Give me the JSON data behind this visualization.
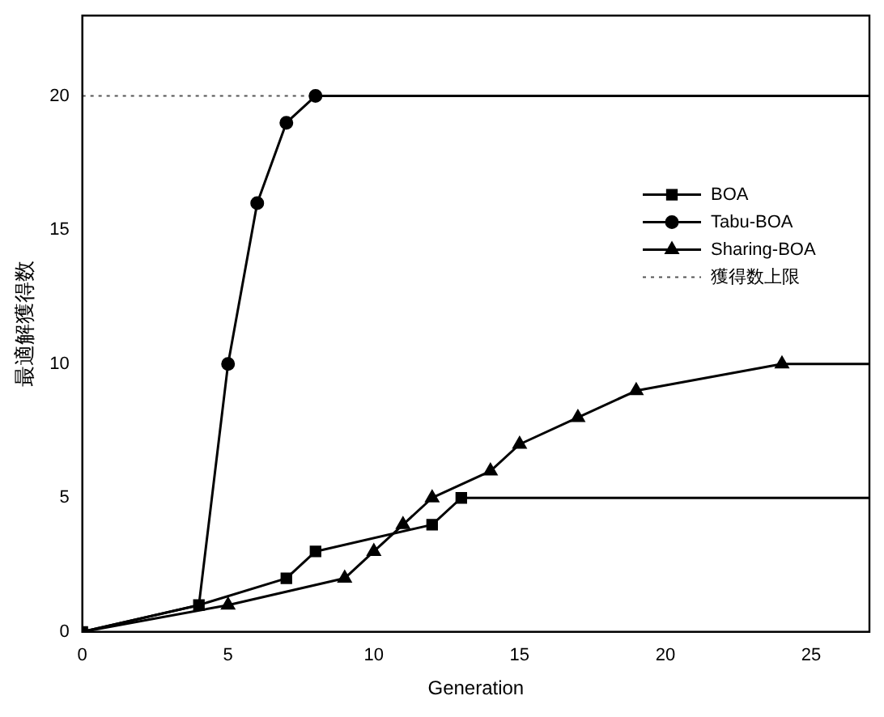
{
  "chart_data": {
    "type": "line",
    "xlabel": "Generation",
    "ylabel": "最適解獲得数",
    "xlim": [
      0,
      27
    ],
    "xticks": [
      0,
      5,
      10,
      15,
      20,
      25
    ],
    "ylim": [
      0,
      23
    ],
    "yticks": [
      0,
      5,
      10,
      15,
      20
    ],
    "grid": false,
    "legend": "right",
    "series": [
      {
        "name": "BOA",
        "color": "#000000",
        "marker": "square",
        "x": [
          0,
          4,
          7,
          8,
          12,
          13,
          27
        ],
        "values": [
          0,
          1,
          2,
          3,
          4,
          5,
          5
        ]
      },
      {
        "name": "Tabu-BOA",
        "color": "#000000",
        "marker": "circle",
        "x": [
          0,
          4,
          5,
          6,
          7,
          8,
          27
        ],
        "values": [
          0,
          1,
          10,
          16,
          19,
          20,
          20
        ]
      },
      {
        "name": "Sharing-BOA",
        "color": "#000000",
        "marker": "triangle",
        "x": [
          0,
          5,
          9,
          10,
          11,
          12,
          14,
          15,
          17,
          19,
          24,
          27
        ],
        "values": [
          0,
          1,
          2,
          3,
          4,
          5,
          6,
          7,
          8,
          9,
          10,
          10
        ]
      }
    ],
    "ref_lines": [
      {
        "axis": "y",
        "value": 20,
        "label": "獲得数上限",
        "color": "#555555",
        "line_style": "dotted"
      }
    ]
  }
}
